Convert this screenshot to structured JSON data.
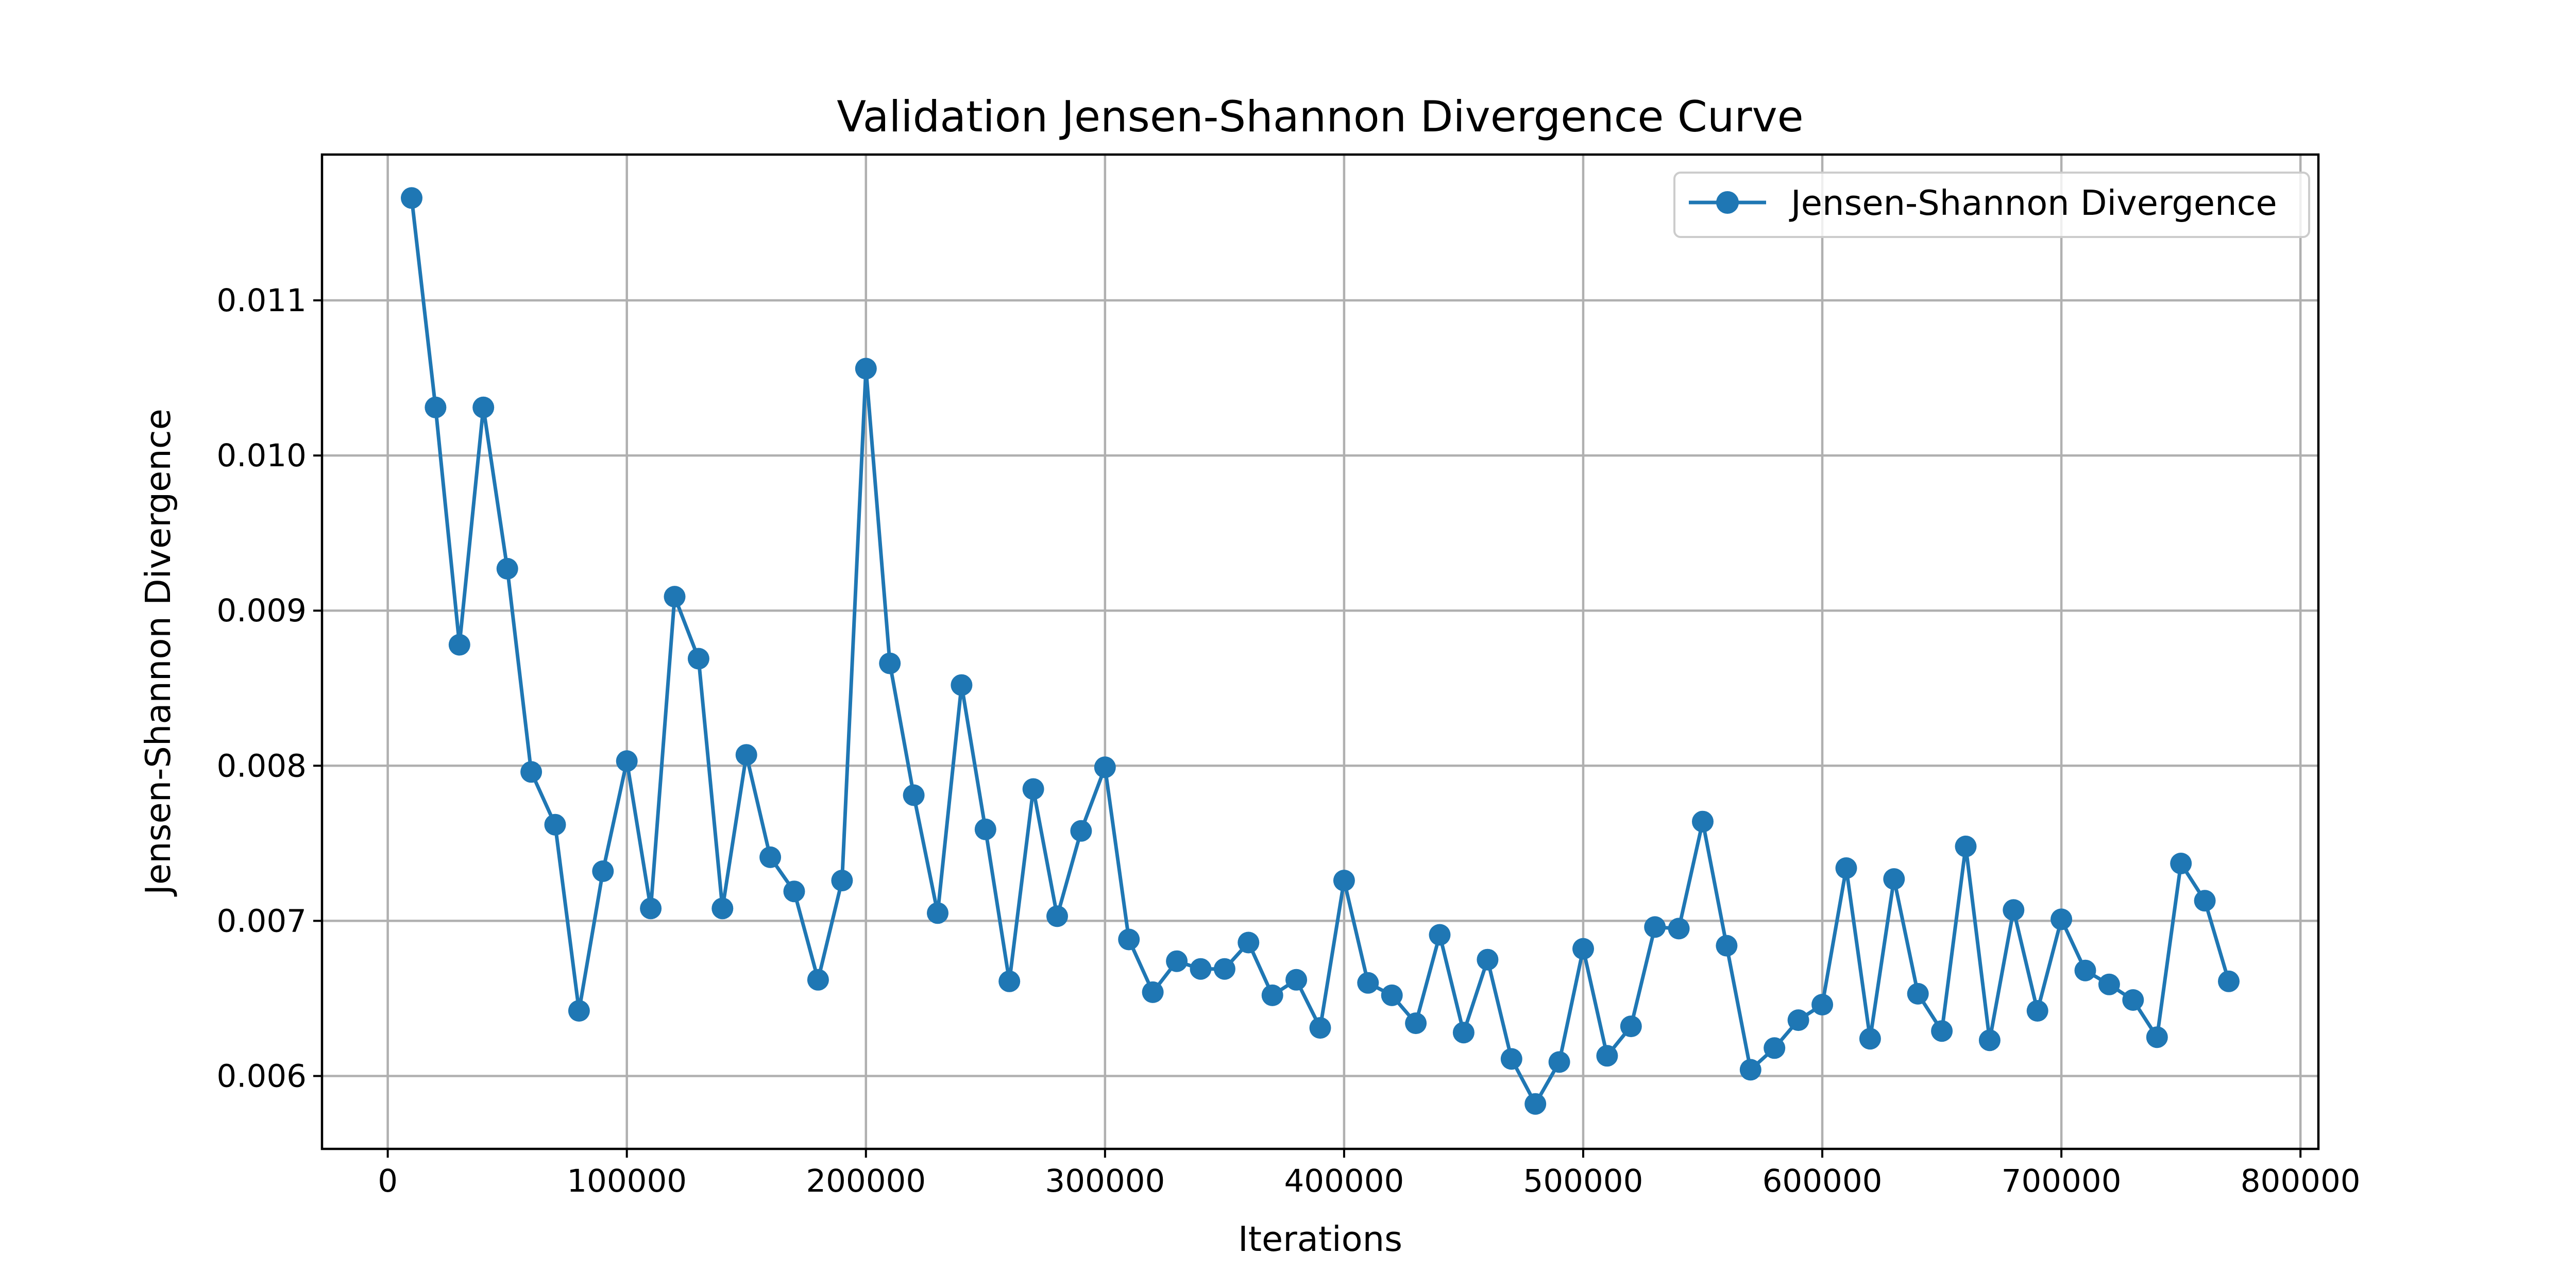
{
  "chart_data": {
    "type": "line",
    "title": "Validation Jensen-Shannon Divergence Curve",
    "xlabel": "Iterations",
    "ylabel": "Jensen-Shannon Divergence",
    "xlim": [
      -27500,
      807500
    ],
    "ylim": [
      0.00553,
      0.01194
    ],
    "xticks": [
      0,
      100000,
      200000,
      300000,
      400000,
      500000,
      600000,
      700000,
      800000
    ],
    "yticks": [
      0.006,
      0.007,
      0.008,
      0.009,
      0.01,
      0.011
    ],
    "xtick_labels": [
      "0",
      "100000",
      "200000",
      "300000",
      "400000",
      "500000",
      "600000",
      "700000",
      "800000"
    ],
    "ytick_labels": [
      "0.006",
      "0.007",
      "0.008",
      "0.009",
      "0.010",
      "0.011"
    ],
    "grid": true,
    "legend_position": "top-right",
    "series": [
      {
        "name": "Jensen-Shannon Divergence",
        "color": "#1f77b4",
        "marker": "circle",
        "x": [
          10000,
          20000,
          30000,
          40000,
          50000,
          60000,
          70000,
          80000,
          90000,
          100000,
          110000,
          120000,
          130000,
          140000,
          150000,
          160000,
          170000,
          180000,
          190000,
          200000,
          210000,
          220000,
          230000,
          240000,
          250000,
          260000,
          270000,
          280000,
          290000,
          300000,
          310000,
          320000,
          330000,
          340000,
          350000,
          360000,
          370000,
          380000,
          390000,
          400000,
          410000,
          420000,
          430000,
          440000,
          450000,
          460000,
          470000,
          480000,
          490000,
          500000,
          510000,
          520000,
          530000,
          540000,
          550000,
          560000,
          570000,
          580000,
          590000,
          600000,
          610000,
          620000,
          630000,
          640000,
          650000,
          660000,
          670000,
          680000,
          690000,
          700000,
          710000,
          720000,
          730000,
          740000,
          750000,
          760000,
          770000
        ],
        "y": [
          0.01166,
          0.01031,
          0.00878,
          0.01031,
          0.00927,
          0.00796,
          0.00762,
          0.00642,
          0.00732,
          0.00803,
          0.00708,
          0.00909,
          0.00869,
          0.00708,
          0.00807,
          0.00741,
          0.00719,
          0.00662,
          0.00726,
          0.01056,
          0.00866,
          0.00781,
          0.00705,
          0.00852,
          0.00759,
          0.00661,
          0.00785,
          0.00703,
          0.00758,
          0.00799,
          0.00688,
          0.00654,
          0.00674,
          0.00669,
          0.00669,
          0.00686,
          0.00652,
          0.00662,
          0.00631,
          0.00726,
          0.0066,
          0.00652,
          0.00634,
          0.00691,
          0.00628,
          0.00675,
          0.00611,
          0.00582,
          0.00609,
          0.00682,
          0.00613,
          0.00632,
          0.00696,
          0.00695,
          0.00764,
          0.00684,
          0.00604,
          0.00618,
          0.00636,
          0.00646,
          0.00734,
          0.00624,
          0.00727,
          0.00653,
          0.00629,
          0.00748,
          0.00623,
          0.00707,
          0.00642,
          0.00701,
          0.00668,
          0.00659,
          0.00649,
          0.00625,
          0.00737,
          0.00713,
          0.00661
        ]
      }
    ]
  }
}
